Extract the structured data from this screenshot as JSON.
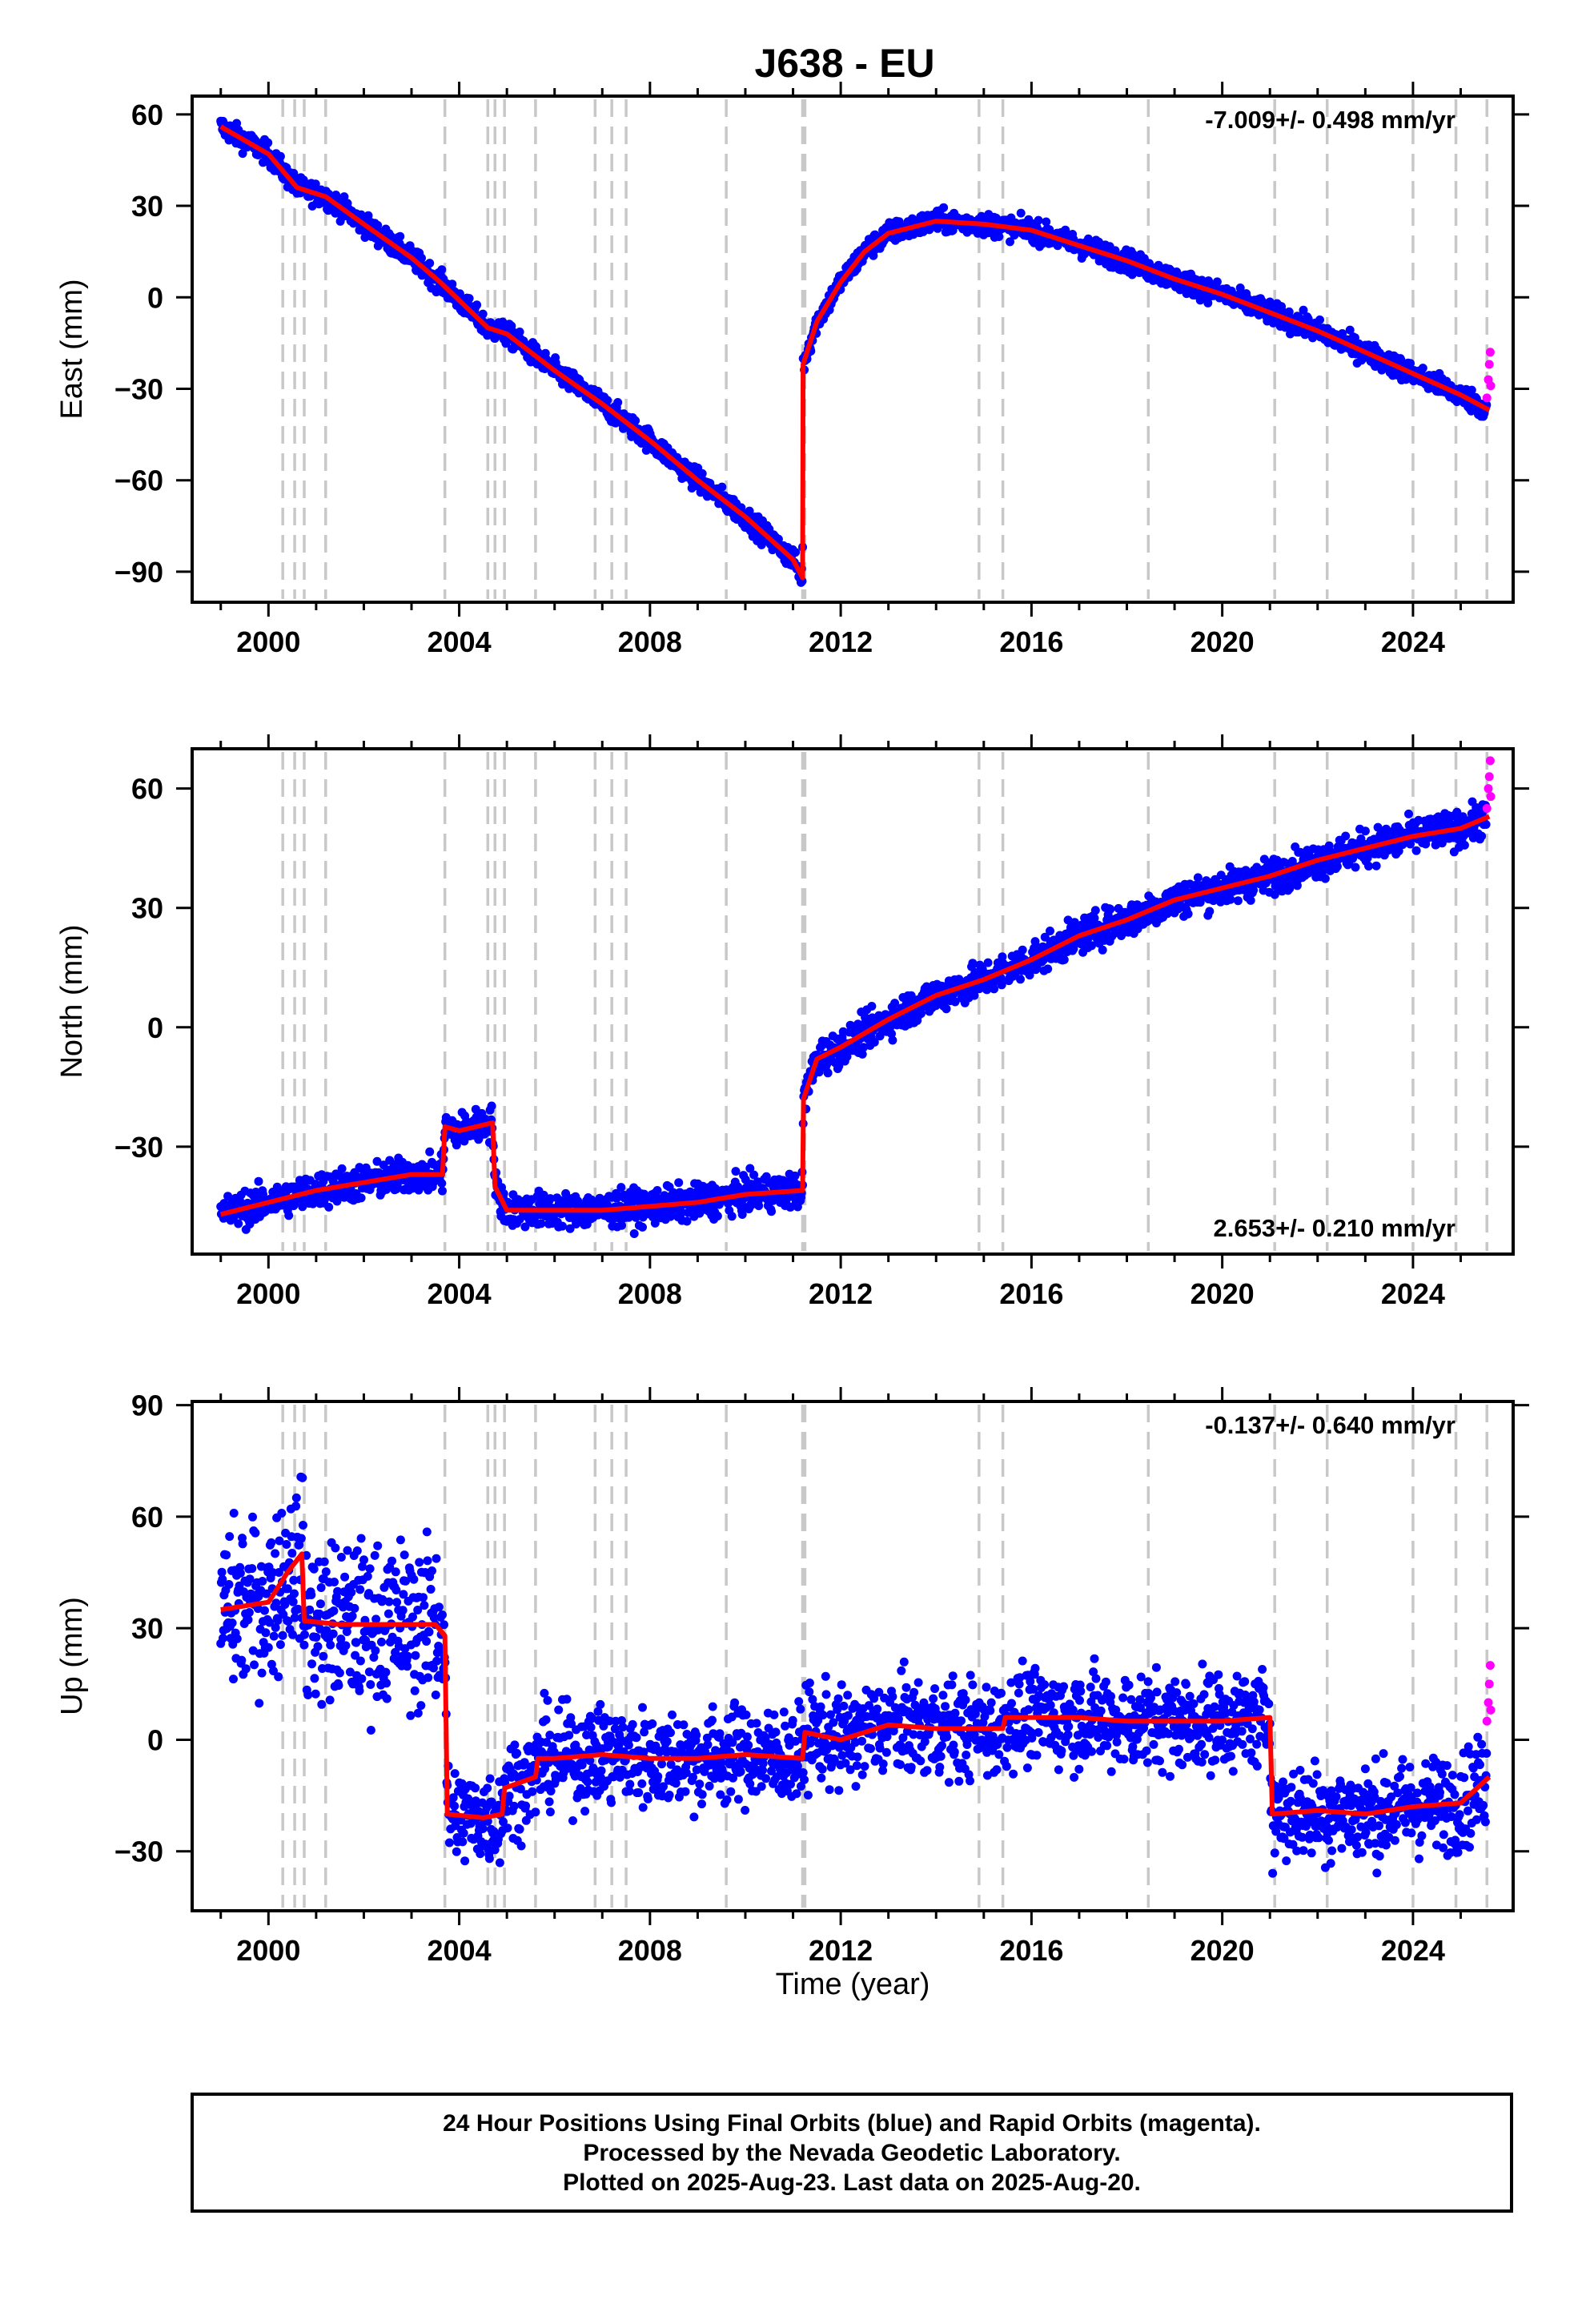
{
  "title": "J638 - EU",
  "chart_data": {
    "type": "scatter",
    "x_label": "Time (year)",
    "x_ticks": [
      2000,
      2004,
      2008,
      2012,
      2016,
      2020,
      2024
    ],
    "xlim": [
      1998.4,
      2026.1
    ],
    "series_colors": {
      "final_orbits": "#0000ff",
      "rapid_orbits": "#ff00ff",
      "model_fit": "#ff0000",
      "event_lines": "#c8c8c8"
    },
    "event_lines_year": [
      2000.3,
      2000.55,
      2000.75,
      2001.2,
      2003.7,
      2004.6,
      2004.75,
      2004.95,
      2005.6,
      2006.85,
      2007.2,
      2007.5,
      2009.6,
      2011.2,
      2011.25,
      2014.9,
      2015.4,
      2018.45,
      2021.1,
      2022.2,
      2024.0,
      2024.9,
      2025.55
    ],
    "panels": [
      {
        "name": "east",
        "ylabel": "East (mm)",
        "ylim": [
          -100,
          66
        ],
        "yticks": [
          60,
          30,
          0,
          -30,
          -60,
          -90
        ],
        "velocity_label": "-7.009+/- 0.498 mm/yr",
        "velocity_position": "top-right",
        "model_fit": [
          [
            1999.0,
            56
          ],
          [
            2000.0,
            47
          ],
          [
            2000.6,
            36
          ],
          [
            2001.2,
            33
          ],
          [
            2002.0,
            24
          ],
          [
            2003.0,
            13
          ],
          [
            2003.6,
            5
          ],
          [
            2004.0,
            -1
          ],
          [
            2004.6,
            -10
          ],
          [
            2005.0,
            -12
          ],
          [
            2006.0,
            -24
          ],
          [
            2007.0,
            -35
          ],
          [
            2008.0,
            -47
          ],
          [
            2009.0,
            -60
          ],
          [
            2010.0,
            -72
          ],
          [
            2011.0,
            -86
          ],
          [
            2011.2,
            -92
          ],
          [
            2011.21,
            -22
          ],
          [
            2011.5,
            -8
          ],
          [
            2012.0,
            5
          ],
          [
            2012.5,
            15
          ],
          [
            2013.0,
            21
          ],
          [
            2014.0,
            25
          ],
          [
            2015.0,
            24
          ],
          [
            2016.0,
            22
          ],
          [
            2017.0,
            17
          ],
          [
            2018.0,
            12
          ],
          [
            2019.0,
            6
          ],
          [
            2020.0,
            1
          ],
          [
            2021.0,
            -5
          ],
          [
            2022.0,
            -11
          ],
          [
            2023.0,
            -18
          ],
          [
            2024.0,
            -25
          ],
          [
            2025.0,
            -32
          ],
          [
            2025.6,
            -37
          ]
        ],
        "rapid_points": [
          [
            2025.55,
            -33
          ],
          [
            2025.58,
            -27
          ],
          [
            2025.6,
            -22
          ],
          [
            2025.62,
            -18
          ],
          [
            2025.63,
            -29
          ]
        ]
      },
      {
        "name": "north",
        "ylabel": "North (mm)",
        "ylim": [
          -57,
          70
        ],
        "yticks": [
          60,
          30,
          0,
          -30
        ],
        "velocity_label": "2.653+/- 0.210 mm/yr",
        "velocity_position": "bottom-right",
        "model_fit": [
          [
            1999.0,
            -47
          ],
          [
            2000.0,
            -44
          ],
          [
            2001.0,
            -41
          ],
          [
            2002.0,
            -39
          ],
          [
            2003.0,
            -37
          ],
          [
            2003.65,
            -37
          ],
          [
            2003.7,
            -25
          ],
          [
            2004.0,
            -26
          ],
          [
            2004.7,
            -24
          ],
          [
            2004.75,
            -40
          ],
          [
            2005.0,
            -46
          ],
          [
            2006.0,
            -46
          ],
          [
            2007.0,
            -46
          ],
          [
            2008.0,
            -45
          ],
          [
            2009.0,
            -44
          ],
          [
            2010.0,
            -42
          ],
          [
            2011.2,
            -41
          ],
          [
            2011.22,
            -18
          ],
          [
            2011.5,
            -8
          ],
          [
            2012.0,
            -5
          ],
          [
            2013.0,
            2
          ],
          [
            2014.0,
            8
          ],
          [
            2015.0,
            12
          ],
          [
            2016.0,
            17
          ],
          [
            2017.0,
            23
          ],
          [
            2018.0,
            27
          ],
          [
            2019.0,
            32
          ],
          [
            2020.0,
            35
          ],
          [
            2021.0,
            38
          ],
          [
            2022.0,
            42
          ],
          [
            2023.0,
            45
          ],
          [
            2024.0,
            48
          ],
          [
            2025.0,
            50
          ],
          [
            2025.6,
            53
          ]
        ],
        "rapid_points": [
          [
            2025.55,
            55
          ],
          [
            2025.58,
            60
          ],
          [
            2025.6,
            63
          ],
          [
            2025.62,
            67
          ],
          [
            2025.63,
            58
          ]
        ]
      },
      {
        "name": "up",
        "ylabel": "Up (mm)",
        "ylim": [
          -46,
          91
        ],
        "yticks": [
          90,
          60,
          30,
          0,
          -30
        ],
        "velocity_label": "-0.137+/- 0.640 mm/yr",
        "velocity_position": "top-right",
        "model_fit": [
          [
            1999.0,
            35
          ],
          [
            2000.0,
            37
          ],
          [
            2000.4,
            45
          ],
          [
            2000.7,
            50
          ],
          [
            2000.75,
            32
          ],
          [
            2001.5,
            31
          ],
          [
            2002.5,
            31
          ],
          [
            2003.5,
            31
          ],
          [
            2003.7,
            28
          ],
          [
            2003.75,
            -20
          ],
          [
            2004.5,
            -21
          ],
          [
            2004.9,
            -20
          ],
          [
            2004.95,
            -13
          ],
          [
            2005.6,
            -10
          ],
          [
            2005.65,
            -5
          ],
          [
            2006.0,
            -5
          ],
          [
            2007.0,
            -4
          ],
          [
            2008.0,
            -5
          ],
          [
            2009.0,
            -5
          ],
          [
            2010.0,
            -4
          ],
          [
            2011.2,
            -5
          ],
          [
            2011.25,
            2
          ],
          [
            2012.0,
            0
          ],
          [
            2013.0,
            4
          ],
          [
            2014.0,
            3
          ],
          [
            2015.4,
            3
          ],
          [
            2015.45,
            6
          ],
          [
            2016.0,
            6
          ],
          [
            2017.0,
            6
          ],
          [
            2018.0,
            5
          ],
          [
            2019.0,
            5
          ],
          [
            2020.0,
            5
          ],
          [
            2021.0,
            6
          ],
          [
            2021.05,
            -20
          ],
          [
            2022.0,
            -19
          ],
          [
            2023.0,
            -20
          ],
          [
            2024.0,
            -18
          ],
          [
            2025.0,
            -17
          ],
          [
            2025.6,
            -10
          ]
        ],
        "rapid_points": [
          [
            2025.55,
            5
          ],
          [
            2025.58,
            10
          ],
          [
            2025.6,
            15
          ],
          [
            2025.62,
            20
          ],
          [
            2025.63,
            8
          ]
        ]
      }
    ]
  },
  "footer": {
    "line1": "24 Hour Positions Using Final Orbits (blue) and Rapid Orbits (magenta).",
    "line2": "Processed by the Nevada Geodetic Laboratory.",
    "line3": "Plotted on 2025-Aug-23. Last data on 2025-Aug-20."
  }
}
